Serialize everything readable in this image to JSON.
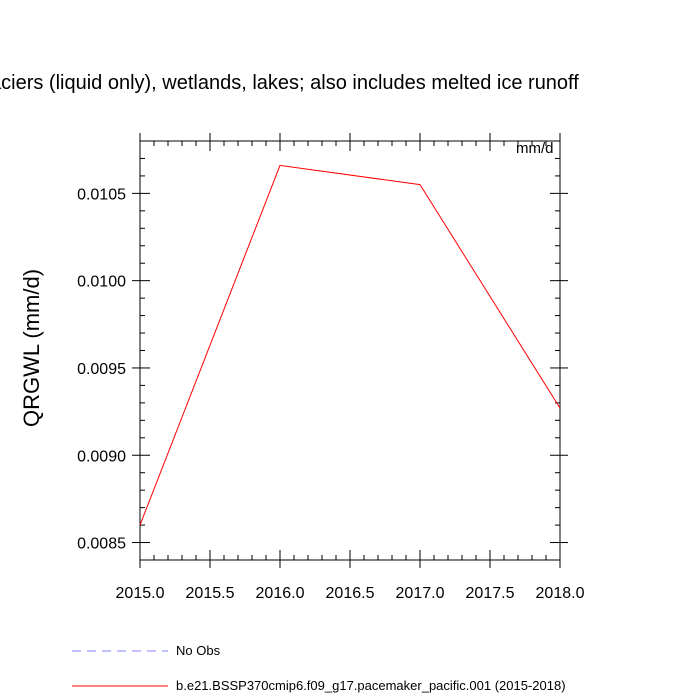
{
  "title": "aciers (liquid only), wetlands, lakes; also includes melted ice runoff",
  "units": "mm/d",
  "ylabel": "QRGWL  (mm/d)",
  "legend": {
    "items": [
      {
        "label": "No Obs",
        "color": "#8080ff",
        "style": "dashed"
      },
      {
        "label": "b.e21.BSSP370cmip6.f09_g17.pacemaker_pacific.001 (2015-2018)",
        "color": "#ff0000",
        "style": "solid"
      }
    ]
  },
  "chart_data": {
    "type": "line",
    "xlim": [
      2015.0,
      2018.0
    ],
    "ylim": [
      0.0084,
      0.0108
    ],
    "xticks": [
      "2015.0",
      "2015.5",
      "2016.0",
      "2016.5",
      "2017.0",
      "2017.5",
      "2018.0"
    ],
    "yticks": [
      "0.0085",
      "0.0090",
      "0.0095",
      "0.0100",
      "0.0105"
    ],
    "series": [
      {
        "name": "b.e21.BSSP370cmip6.f09_g17.pacemaker_pacific.001 (2015-2018)",
        "color": "#ff0000",
        "x": [
          2015.0,
          2016.0,
          2017.0,
          2018.0
        ],
        "y": [
          0.0086,
          0.01066,
          0.01055,
          0.00927
        ]
      }
    ],
    "grid": false
  }
}
